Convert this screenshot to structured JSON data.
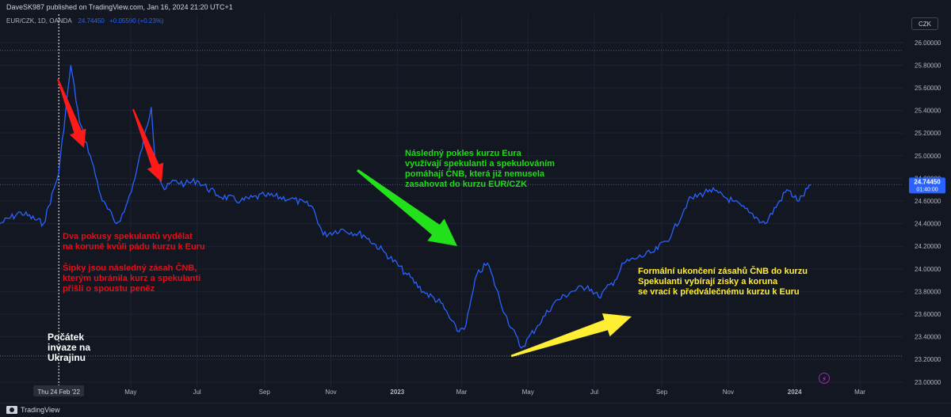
{
  "header": {
    "publisher": "DaveSK987 published on TradingView.com, Jan 16, 2024 21:20 UTC+1"
  },
  "legend": {
    "symbol": "EUR/CZK, 1D, OANDA",
    "price": "24.74450",
    "change": "+0.05590 (+0.23%)"
  },
  "currency_badge": "CZK",
  "footer": {
    "brand": "TradingView"
  },
  "price_label": {
    "value": "24.74450",
    "countdown": "01:40:00"
  },
  "annotations": {
    "red_1": "Dva pokusy spekulantů vydělat\nna koruně kvůli pádu kurzu k Euru",
    "red_2": "Šipky jsou následný zásah ČNB,\nkterým ubránila kurz a spekulanti\npřišli o spoustu peněz",
    "green": "Následný pokles kurzu Eura\nvyužívají spekulanti a spekulováním\npomáhají ČNB, která již nemusela\nzasahovat do kurzu EUR/CZK",
    "yellow": "Formální ukončení zásahů ČNB do kurzu\nSpekulanti vybírají zisky a koruna\nse vrací k předválečnému kurzu k Euru",
    "white": "Počátek\ninvaze na\nUkrajinu"
  },
  "colors": {
    "background": "#131722",
    "line": "#2962ff",
    "red_arrow": "#ff1a1a",
    "green_arrow": "#22e01a",
    "yellow_arrow": "#ffee33"
  },
  "icons": {
    "alert": "lightning-icon"
  },
  "chart_data": {
    "type": "line",
    "series": [
      {
        "name": "EUR/CZK",
        "x": [
          "2022-01-01",
          "2022-01-20",
          "2022-02-10",
          "2022-02-24",
          "2022-03-07",
          "2022-03-15",
          "2022-03-25",
          "2022-04-05",
          "2022-04-18",
          "2022-04-25",
          "2022-05-05",
          "2022-05-20",
          "2022-05-24",
          "2022-06-01",
          "2022-06-10",
          "2022-06-20",
          "2022-07-01",
          "2022-07-20",
          "2022-08-10",
          "2022-09-01",
          "2022-09-25",
          "2022-10-15",
          "2022-10-25",
          "2022-11-10",
          "2022-12-01",
          "2022-12-20",
          "2023-01-10",
          "2023-01-25",
          "2023-02-10",
          "2023-02-25",
          "2023-03-05",
          "2023-03-15",
          "2023-03-25",
          "2023-04-10",
          "2023-04-25",
          "2023-05-10",
          "2023-05-25",
          "2023-06-10",
          "2023-06-25",
          "2023-07-05",
          "2023-07-20",
          "2023-07-28",
          "2023-08-10",
          "2023-08-25",
          "2023-09-10",
          "2023-09-25",
          "2023-10-15",
          "2023-11-05",
          "2023-11-20",
          "2023-12-05",
          "2023-12-25",
          "2024-01-05",
          "2024-01-16"
        ],
        "y": [
          24.4,
          24.5,
          24.4,
          24.85,
          25.8,
          25.3,
          25.0,
          24.6,
          24.4,
          24.5,
          24.8,
          25.43,
          24.9,
          24.7,
          24.78,
          24.75,
          24.78,
          24.65,
          24.6,
          24.65,
          24.62,
          24.55,
          24.3,
          24.35,
          24.3,
          24.15,
          23.95,
          23.8,
          23.7,
          23.45,
          23.5,
          23.95,
          24.05,
          23.6,
          23.3,
          23.5,
          23.7,
          23.8,
          23.85,
          23.75,
          23.9,
          24.05,
          24.1,
          24.15,
          24.3,
          24.6,
          24.7,
          24.6,
          24.5,
          24.4,
          24.7,
          24.6,
          24.7445
        ]
      }
    ],
    "x_tick_labels": [
      "Thu 24 Feb '22",
      "May",
      "Jul",
      "Sep",
      "Nov",
      "2023",
      "Mar",
      "May",
      "Jul",
      "Sep",
      "Nov",
      "2024",
      "Mar"
    ],
    "y_tick_labels": [
      "26.00000",
      "25.80000",
      "25.60000",
      "25.40000",
      "25.20000",
      "25.00000",
      "24.80000",
      "24.60000",
      "24.40000",
      "24.20000",
      "24.00000",
      "23.80000",
      "23.60000",
      "23.40000",
      "23.20000",
      "23.00000"
    ],
    "xlim": [
      "2022-01-01",
      "2024-04-10"
    ],
    "ylim": [
      22.95,
      26.25
    ],
    "grid": true,
    "reference_lines": [
      25.93,
      23.23
    ],
    "crosshair_date": "2022-02-24",
    "last_price": 24.7445
  }
}
